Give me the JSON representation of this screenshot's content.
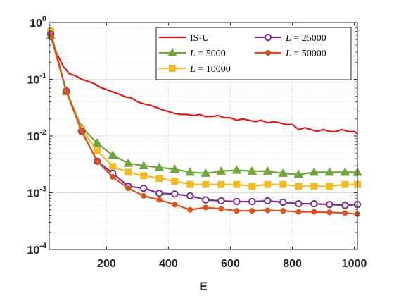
{
  "chart_data": {
    "type": "line",
    "title": "",
    "xlabel": "E",
    "ylabel": "",
    "xlim": [
      15,
      1010
    ],
    "ylim": [
      0.0001,
      1
    ],
    "yscale": "log",
    "grid": true,
    "legend_position": "top-right",
    "x_ticks": [
      200,
      400,
      600,
      800,
      1000
    ],
    "x_tick_labels": [
      "200",
      "400",
      "600",
      "800",
      "1000"
    ],
    "y_ticks": [
      1,
      0.1,
      0.01,
      0.001,
      0.0001
    ],
    "y_tick_labels": [
      {
        "base": "10",
        "exp": "0"
      },
      {
        "base": "10",
        "exp": "-1"
      },
      {
        "base": "10",
        "exp": "-2"
      },
      {
        "base": "10",
        "exp": "-3"
      },
      {
        "base": "10",
        "exp": "-4"
      }
    ],
    "series": [
      {
        "name": "IS-U",
        "legend_parts": [
          {
            "text": "IS-U",
            "italic": false
          }
        ],
        "color": "#e0181a",
        "marker": "none",
        "x": [
          20,
          40,
          60,
          80,
          100,
          120,
          140,
          160,
          180,
          200,
          220,
          240,
          260,
          280,
          300,
          320,
          340,
          360,
          380,
          400,
          420,
          440,
          460,
          480,
          500,
          520,
          540,
          560,
          580,
          600,
          620,
          640,
          660,
          680,
          700,
          720,
          740,
          760,
          780,
          800,
          820,
          840,
          860,
          880,
          900,
          920,
          940,
          960,
          980,
          1000,
          1010
        ],
        "values": [
          0.6,
          0.28,
          0.17,
          0.125,
          0.115,
          0.1,
          0.092,
          0.084,
          0.072,
          0.066,
          0.06,
          0.055,
          0.049,
          0.047,
          0.04,
          0.037,
          0.035,
          0.032,
          0.029,
          0.027,
          0.025,
          0.024,
          0.024,
          0.023,
          0.024,
          0.022,
          0.022,
          0.023,
          0.021,
          0.021,
          0.019,
          0.02,
          0.019,
          0.018,
          0.019,
          0.017,
          0.018,
          0.017,
          0.016,
          0.016,
          0.013,
          0.014,
          0.013,
          0.012,
          0.013,
          0.012,
          0.012,
          0.013,
          0.012,
          0.012,
          0.011
        ]
      },
      {
        "name": "L = 5000",
        "legend_parts": [
          {
            "text": "L",
            "italic": true
          },
          {
            "text": " = 5000",
            "italic": false
          }
        ],
        "color": "#6fa53c",
        "marker": "triangle",
        "x": [
          20,
          70,
          120,
          170,
          220,
          270,
          320,
          370,
          420,
          470,
          520,
          570,
          620,
          670,
          720,
          770,
          820,
          870,
          920,
          970,
          1010
        ],
        "values": [
          0.58,
          0.062,
          0.014,
          0.0075,
          0.0046,
          0.0033,
          0.003,
          0.0028,
          0.0026,
          0.0023,
          0.0022,
          0.0024,
          0.0025,
          0.0024,
          0.0024,
          0.0022,
          0.0021,
          0.0023,
          0.0023,
          0.0023,
          0.0023
        ]
      },
      {
        "name": "L = 10000",
        "legend_parts": [
          {
            "text": "L",
            "italic": true
          },
          {
            "text": " = 10000",
            "italic": false
          }
        ],
        "color": "#f2bb26",
        "marker": "square",
        "x": [
          20,
          70,
          120,
          170,
          220,
          270,
          320,
          370,
          420,
          470,
          520,
          570,
          620,
          670,
          720,
          770,
          820,
          870,
          920,
          970,
          1010
        ],
        "values": [
          0.7,
          0.06,
          0.013,
          0.0055,
          0.0029,
          0.0023,
          0.002,
          0.0018,
          0.0016,
          0.0014,
          0.0014,
          0.0014,
          0.0014,
          0.0013,
          0.0014,
          0.0014,
          0.0013,
          0.0013,
          0.0013,
          0.0014,
          0.0014
        ]
      },
      {
        "name": "L = 25000",
        "legend_parts": [
          {
            "text": "L",
            "italic": true
          },
          {
            "text": " = 25000",
            "italic": false
          }
        ],
        "color": "#7b2f8e",
        "marker": "circle-open",
        "x": [
          20,
          70,
          120,
          170,
          220,
          270,
          320,
          370,
          420,
          470,
          520,
          570,
          620,
          670,
          720,
          770,
          820,
          870,
          920,
          970,
          1010
        ],
        "values": [
          0.62,
          0.062,
          0.012,
          0.0036,
          0.0022,
          0.0013,
          0.0012,
          0.00098,
          0.00095,
          0.00088,
          0.00075,
          0.00072,
          0.0007,
          0.0007,
          0.00072,
          0.00068,
          0.00064,
          0.00064,
          0.00062,
          0.0006,
          0.00062
        ]
      },
      {
        "name": "L = 50000",
        "legend_parts": [
          {
            "text": "L",
            "italic": true
          },
          {
            "text": " = 50000",
            "italic": false
          }
        ],
        "color": "#d9541c",
        "marker": "circle",
        "x": [
          20,
          70,
          120,
          170,
          220,
          270,
          320,
          370,
          420,
          470,
          520,
          570,
          620,
          670,
          720,
          770,
          820,
          870,
          920,
          970,
          1010
        ],
        "values": [
          0.6,
          0.062,
          0.012,
          0.0036,
          0.0019,
          0.0012,
          0.00088,
          0.00075,
          0.00062,
          0.0005,
          0.00055,
          0.00052,
          0.00048,
          0.00048,
          0.00049,
          0.00048,
          0.00046,
          0.00046,
          0.00045,
          0.00044,
          0.00042
        ]
      }
    ]
  }
}
